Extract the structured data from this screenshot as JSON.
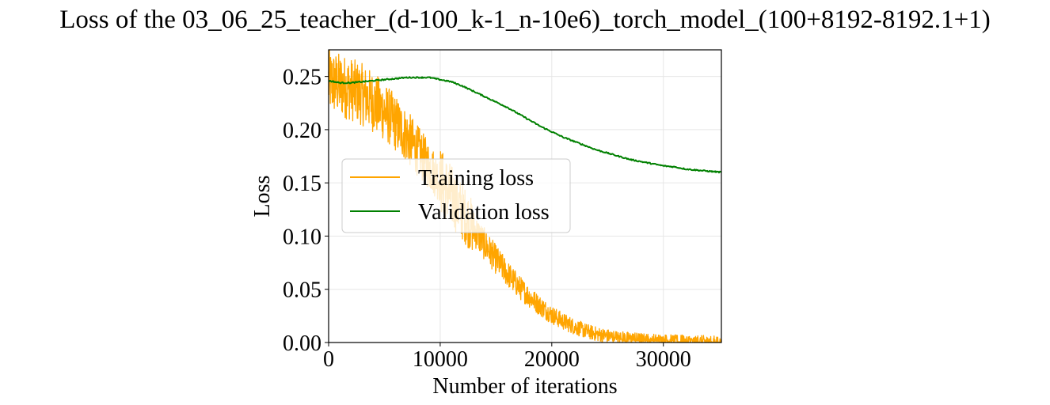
{
  "chart_data": {
    "type": "line",
    "title": "Loss of the 03_06_25_teacher_(d-100_k-1_n-10e6)_torch_model_(100+8192-8192.1+1)",
    "xlabel": "Number of iterations",
    "ylabel": "Loss",
    "xlim": [
      0,
      35200
    ],
    "ylim": [
      0,
      0.275
    ],
    "x_ticks": [
      0,
      10000,
      20000,
      30000
    ],
    "x_tick_labels": [
      "0",
      "10000",
      "20000",
      "30000"
    ],
    "y_ticks": [
      0,
      0.05,
      0.1,
      0.15,
      0.2,
      0.25
    ],
    "y_tick_labels": [
      "0.00",
      "0.05",
      "0.10",
      "0.15",
      "0.20",
      "0.25"
    ],
    "grid": true,
    "legend_placement": "center-left",
    "series": [
      {
        "name": "Training loss",
        "color": "#ffa500",
        "noisy": true,
        "x": [
          0,
          1000,
          2000,
          3000,
          4000,
          5000,
          6000,
          7000,
          8000,
          9000,
          10000,
          11000,
          12000,
          13000,
          14000,
          15000,
          16000,
          17000,
          18000,
          19000,
          20000,
          21000,
          22000,
          23000,
          24000,
          25000,
          26000,
          27000,
          28000,
          29000,
          30000,
          31000,
          32000,
          33000,
          34000,
          35200
        ],
        "values": [
          0.245,
          0.242,
          0.238,
          0.233,
          0.226,
          0.217,
          0.206,
          0.194,
          0.18,
          0.166,
          0.152,
          0.138,
          0.123,
          0.107,
          0.092,
          0.078,
          0.065,
          0.053,
          0.043,
          0.034,
          0.026,
          0.02,
          0.015,
          0.011,
          0.008,
          0.006,
          0.0045,
          0.0035,
          0.0027,
          0.002,
          0.0016,
          0.0012,
          0.001,
          0.0008,
          0.0006,
          0.0005
        ]
      },
      {
        "name": "Validation loss",
        "color": "#008000",
        "noisy": false,
        "x": [
          0,
          1000,
          2000,
          3000,
          4000,
          5000,
          6000,
          7000,
          8000,
          9000,
          10000,
          11000,
          12000,
          13000,
          14000,
          15000,
          16000,
          17000,
          18000,
          19000,
          20000,
          21000,
          22000,
          23000,
          24000,
          25000,
          26000,
          27000,
          28000,
          29000,
          30000,
          31000,
          32000,
          33000,
          34000,
          35200
        ],
        "values": [
          0.246,
          0.244,
          0.244,
          0.245,
          0.246,
          0.247,
          0.248,
          0.249,
          0.249,
          0.249,
          0.247,
          0.245,
          0.241,
          0.236,
          0.231,
          0.226,
          0.221,
          0.215,
          0.209,
          0.203,
          0.198,
          0.193,
          0.189,
          0.185,
          0.181,
          0.178,
          0.175,
          0.172,
          0.17,
          0.168,
          0.166,
          0.165,
          0.163,
          0.162,
          0.161,
          0.16
        ]
      }
    ]
  }
}
